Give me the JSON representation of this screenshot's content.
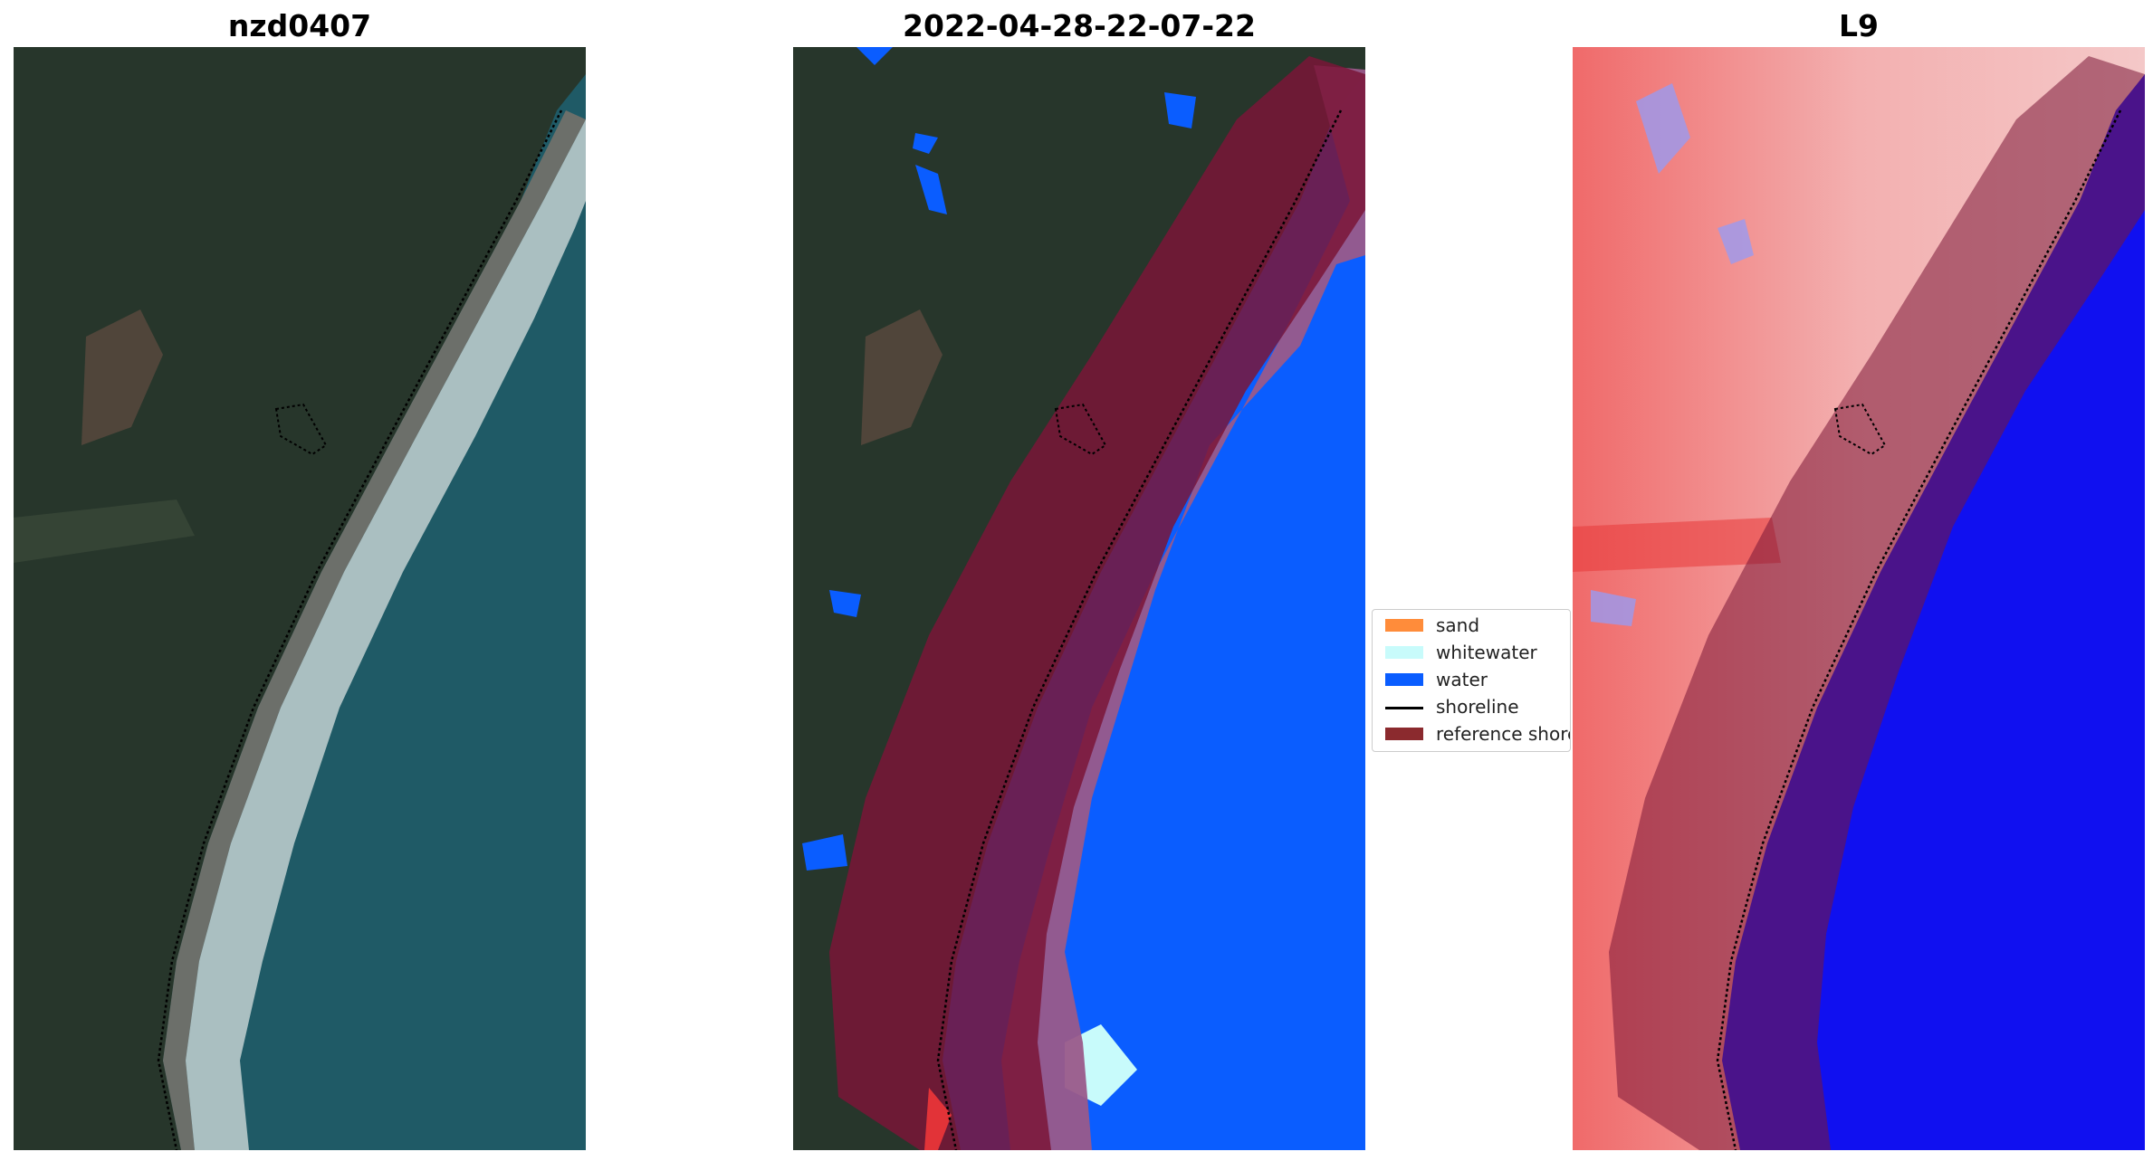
{
  "panels": [
    {
      "title": "nzd0407",
      "kind": "rgb"
    },
    {
      "title": "2022-04-28-22-07-22",
      "kind": "classified"
    },
    {
      "title": "L9",
      "kind": "index"
    }
  ],
  "legend": {
    "items": [
      {
        "label": "sand",
        "color": "#ff8c3a"
      },
      {
        "label": "whitewater",
        "color": "#c8fbfb"
      },
      {
        "label": "water",
        "color": "#0a5dff"
      },
      {
        "label": "shoreline",
        "color": "#000000"
      },
      {
        "label": "reference shoreline buffer",
        "color": "#8b2a2e"
      }
    ]
  },
  "colors": {
    "land": "#26352a",
    "ocean": "#1f5a66",
    "water_class": "#0a5dff",
    "buffer": "#7a1537",
    "index_land": "#f06a6a",
    "index_water": "#1010f0"
  }
}
